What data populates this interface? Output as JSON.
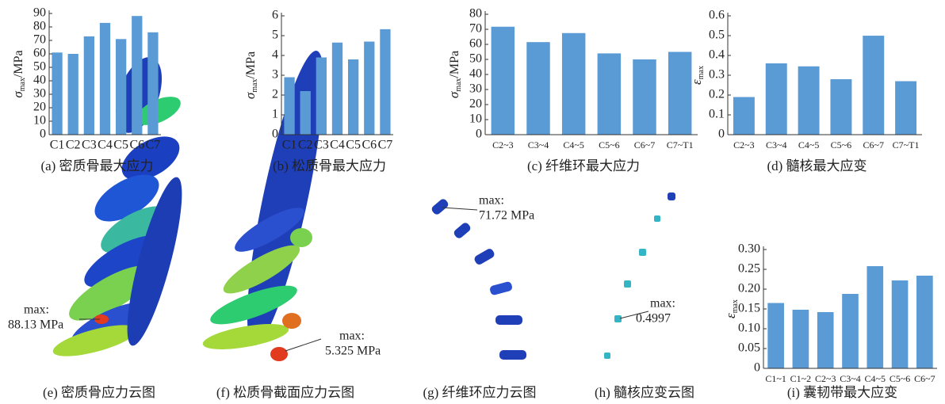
{
  "chart_data": [
    {
      "type": "bar",
      "ylabel": {
        "symbol": "σ",
        "subscript": "max",
        "unit": "/MPa"
      },
      "categories": [
        "C1",
        "C2",
        "C3",
        "C4",
        "C5",
        "C6",
        "C7"
      ],
      "values": [
        61,
        60,
        73,
        83,
        71,
        88.13,
        76
      ],
      "color": "#5b9bd5",
      "ylim": [
        0,
        90
      ],
      "yticks": [
        0,
        10,
        20,
        30,
        40,
        50,
        60,
        70,
        80,
        90
      ],
      "caption": "(a) 密质骨最大应力"
    },
    {
      "type": "bar",
      "ylabel": {
        "symbol": "σ",
        "subscript": "max",
        "unit": "/MPa"
      },
      "categories": [
        "C1",
        "C2",
        "C3",
        "C4",
        "C5",
        "C6",
        "C7"
      ],
      "values": [
        2.9,
        2.2,
        3.9,
        4.65,
        3.8,
        4.7,
        5.325
      ],
      "color": "#5b9bd5",
      "ylim": [
        0,
        6
      ],
      "yticks": [
        0,
        1,
        2,
        3,
        4,
        5,
        6
      ],
      "caption": "(b) 松质骨最大应力"
    },
    {
      "type": "bar",
      "ylabel": {
        "symbol": "σ",
        "subscript": "max",
        "unit": "/MPa"
      },
      "categories": [
        "C2~3",
        "C3~4",
        "C4~5",
        "C5~6",
        "C6~7",
        "C7~T1"
      ],
      "values": [
        71.72,
        61.5,
        67.5,
        54,
        50,
        55
      ],
      "color": "#5b9bd5",
      "ylim": [
        0,
        80
      ],
      "yticks": [
        0,
        10,
        20,
        30,
        40,
        50,
        60,
        70,
        80
      ],
      "caption": "(c) 纤维环最大应力"
    },
    {
      "type": "bar",
      "ylabel": {
        "symbol": "ε",
        "subscript": "max"
      },
      "categories": [
        "C2~3",
        "C3~4",
        "C4~5",
        "C5~6",
        "C6~7",
        "C7~T1"
      ],
      "values": [
        0.19,
        0.36,
        0.345,
        0.28,
        0.4997,
        0.27
      ],
      "color": "#5b9bd5",
      "ylim": [
        0,
        0.6
      ],
      "yticks": [
        0,
        0.1,
        0.2,
        0.3,
        0.4,
        0.5,
        0.6
      ],
      "caption": "(d) 髓核最大应变"
    },
    {
      "type": "bar",
      "ylabel": {
        "symbol": "ε",
        "subscript": "max"
      },
      "categories": [
        "C1~1",
        "C1~2",
        "C2~3",
        "C3~4",
        "C4~5",
        "C5~6",
        "C6~7"
      ],
      "values": [
        0.165,
        0.148,
        0.142,
        0.188,
        0.258,
        0.222,
        0.234
      ],
      "color": "#5b9bd5",
      "ylim": [
        0,
        0.3
      ],
      "yticks": [
        0,
        0.05,
        {
          "value": 0.1,
          "label": "0.10"
        },
        0.15,
        {
          "value": 0.2,
          "label": "0.20"
        },
        0.25,
        {
          "value": 0.3,
          "label": "0.30"
        }
      ],
      "caption": "(i) 囊韧带最大应变"
    }
  ],
  "figures": [
    {
      "caption": "(e) 密质骨应力云图",
      "annotation": [
        "max:",
        "88.13 MPa"
      ]
    },
    {
      "caption": "(f) 松质骨截面应力云图",
      "annotation": [
        "max:",
        "5.325 MPa"
      ]
    },
    {
      "caption": "(g) 纤维环应力云图",
      "annotation": [
        "max:",
        "71.72 MPa"
      ]
    },
    {
      "caption": "(h) 髓核应变云图",
      "annotation": [
        "max:",
        "0.4997"
      ]
    }
  ]
}
